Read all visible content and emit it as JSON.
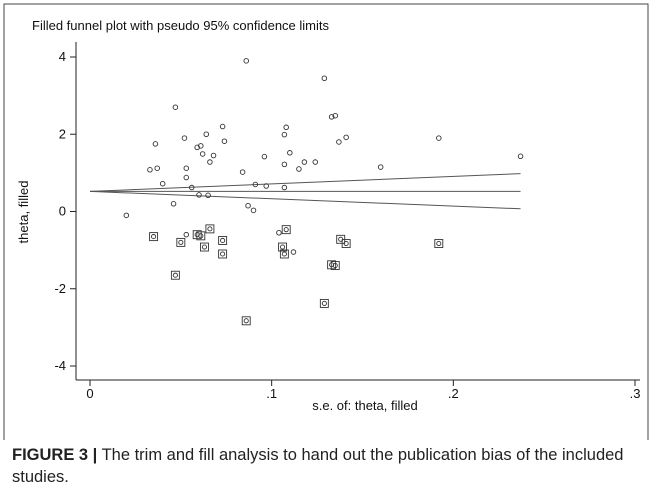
{
  "chart_data": {
    "type": "scatter",
    "title": "Filled funnel plot with pseudo 95% confidence limits",
    "xlabel": "s.e. of: theta, filled",
    "ylabel": "theta, filled",
    "xlim": [
      0,
      0.3
    ],
    "ylim": [
      -4,
      4
    ],
    "x_ticks": [
      0,
      0.1,
      0.2,
      0.3
    ],
    "x_tick_labels": [
      "0",
      ".1",
      ".2",
      ".3"
    ],
    "y_ticks": [
      -4,
      -2,
      0,
      2,
      4
    ],
    "y_tick_labels": [
      "-4",
      "-2",
      "0",
      "2",
      "4"
    ],
    "grid": false,
    "pooled_estimate": 0.52,
    "confidence_limits": {
      "se_max": 0.237,
      "upper_at_se_max": 0.98,
      "lower_at_se_max": 0.07
    },
    "series": [
      {
        "marker": "circle",
        "points": [
          [
            0.086,
            3.9
          ],
          [
            0.129,
            3.45
          ],
          [
            0.047,
            2.7
          ],
          [
            0.133,
            2.45
          ],
          [
            0.135,
            2.48
          ],
          [
            0.073,
            2.2
          ],
          [
            0.108,
            2.18
          ],
          [
            0.107,
            1.99
          ],
          [
            0.064,
            2.0
          ],
          [
            0.052,
            1.9
          ],
          [
            0.074,
            1.82
          ],
          [
            0.036,
            1.75
          ],
          [
            0.137,
            1.8
          ],
          [
            0.141,
            1.92
          ],
          [
            0.192,
            1.9
          ],
          [
            0.059,
            1.66
          ],
          [
            0.061,
            1.7
          ],
          [
            0.096,
            1.42
          ],
          [
            0.11,
            1.52
          ],
          [
            0.068,
            1.45
          ],
          [
            0.062,
            1.49
          ],
          [
            0.124,
            1.28
          ],
          [
            0.118,
            1.28
          ],
          [
            0.066,
            1.28
          ],
          [
            0.107,
            1.22
          ],
          [
            0.115,
            1.1
          ],
          [
            0.053,
            1.12
          ],
          [
            0.037,
            1.12
          ],
          [
            0.033,
            1.08
          ],
          [
            0.084,
            1.02
          ],
          [
            0.16,
            1.15
          ],
          [
            0.237,
            1.43
          ],
          [
            0.053,
            0.88
          ],
          [
            0.091,
            0.7
          ],
          [
            0.097,
            0.66
          ],
          [
            0.04,
            0.72
          ],
          [
            0.107,
            0.62
          ],
          [
            0.056,
            0.62
          ],
          [
            0.06,
            0.43
          ],
          [
            0.065,
            0.42
          ],
          [
            0.046,
            0.2
          ],
          [
            0.087,
            0.15
          ],
          [
            0.09,
            0.03
          ],
          [
            0.02,
            -0.1
          ],
          [
            0.104,
            -0.55
          ],
          [
            0.053,
            -0.6
          ],
          [
            0.112,
            -1.05
          ]
        ]
      },
      {
        "marker": "boxed-circle",
        "points": [
          [
            0.035,
            -0.65
          ],
          [
            0.066,
            -0.45
          ],
          [
            0.108,
            -0.47
          ],
          [
            0.059,
            -0.6
          ],
          [
            0.061,
            -0.63
          ],
          [
            0.138,
            -0.72
          ],
          [
            0.073,
            -0.75
          ],
          [
            0.141,
            -0.83
          ],
          [
            0.192,
            -0.83
          ],
          [
            0.05,
            -0.8
          ],
          [
            0.063,
            -0.92
          ],
          [
            0.106,
            -0.92
          ],
          [
            0.073,
            -1.1
          ],
          [
            0.107,
            -1.1
          ],
          [
            0.133,
            -1.38
          ],
          [
            0.135,
            -1.4
          ],
          [
            0.047,
            -1.65
          ],
          [
            0.129,
            -2.38
          ],
          [
            0.086,
            -2.83
          ]
        ]
      }
    ]
  },
  "caption": {
    "label": "FIGURE 3 |",
    "text": " The trim and fill analysis to hand out the publication bias of the included studies."
  }
}
